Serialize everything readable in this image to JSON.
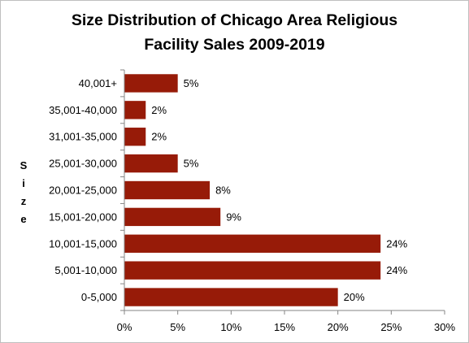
{
  "chart_data": {
    "type": "bar",
    "orientation": "horizontal",
    "title_lines": [
      "Size Distribution of Chicago Area Religious",
      "Facility Sales 2009-2019"
    ],
    "ylabel": "Size",
    "xlabel": "",
    "categories": [
      "0-5,000",
      "5,001-10,000",
      "10,001-15,000",
      "15,001-20,000",
      "20,001-25,000",
      "25,001-30,000",
      "31,001-35,000",
      "35,001-40,000",
      "40,001+"
    ],
    "values": [
      20,
      24,
      24,
      9,
      8,
      5,
      2,
      2,
      5
    ],
    "value_labels": [
      "20%",
      "24%",
      "24%",
      "9%",
      "8%",
      "5%",
      "2%",
      "2%",
      "5%"
    ],
    "xlim": [
      0,
      30
    ],
    "xticks": [
      0,
      5,
      10,
      15,
      20,
      25,
      30
    ],
    "xtick_labels": [
      "0%",
      "5%",
      "10%",
      "15%",
      "20%",
      "25%",
      "30%"
    ],
    "bar_color": "#971B08",
    "grid": false,
    "legend": "none"
  }
}
